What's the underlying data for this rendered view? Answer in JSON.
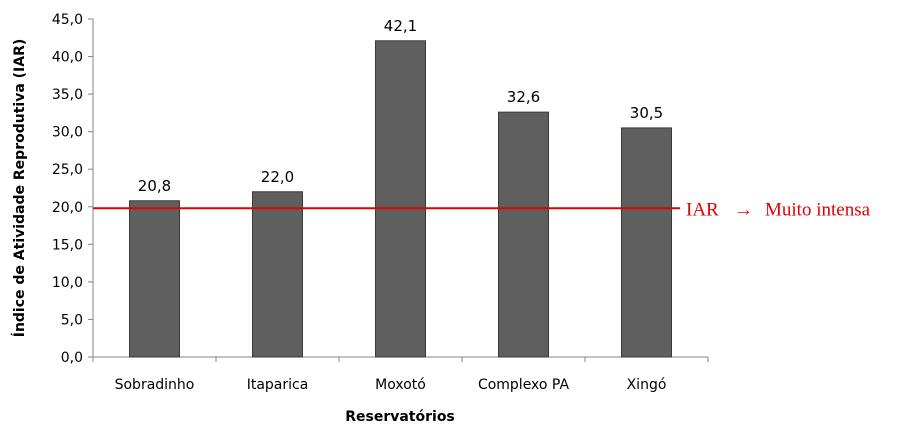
{
  "chart_data": {
    "type": "bar",
    "categories": [
      "Sobradinho",
      "Itaparica",
      "Moxotó",
      "Complexo PA",
      "Xingó"
    ],
    "values": [
      20.8,
      22.0,
      42.1,
      32.6,
      30.5
    ],
    "value_labels": [
      "20,8",
      "22,0",
      "42,1",
      "32,6",
      "30,5"
    ],
    "xlabel": "Reservatórios",
    "ylabel": "Índice de Atividade Reprodutiva (IAR)",
    "ylim": [
      0,
      45
    ],
    "yticks": [
      0,
      5,
      10,
      15,
      20,
      25,
      30,
      35,
      40,
      45
    ],
    "ytick_labels": [
      "0,0",
      "5,0",
      "10,0",
      "15,0",
      "20,0",
      "25,0",
      "30,0",
      "35,0",
      "40,0",
      "45,0"
    ],
    "grid": false,
    "legend": "none",
    "bar_color": "#5f5f5f",
    "reference_line": {
      "value": 19.8,
      "color": "#e00000",
      "label_prefix": "IAR",
      "arrow": "→",
      "label_suffix": "Muito intensa"
    }
  }
}
